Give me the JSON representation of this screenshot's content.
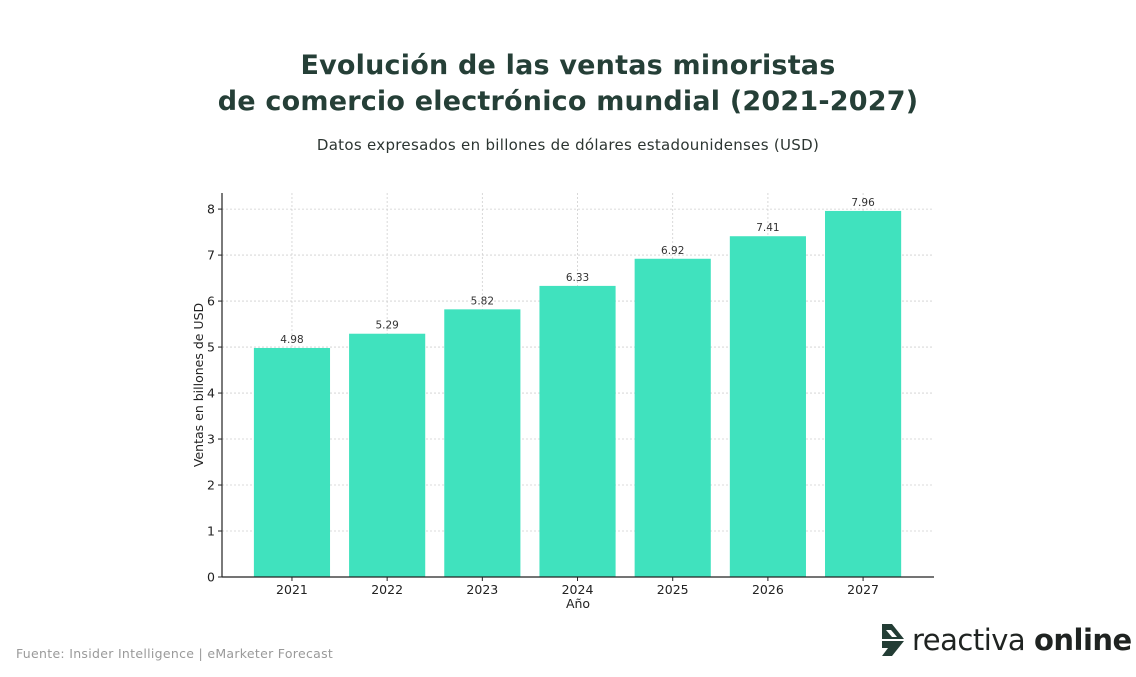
{
  "chart_data": {
    "type": "bar",
    "title": [
      "Evolución de las ventas minoristas",
      "de comercio electrónico mundial (2021-2027)"
    ],
    "subtitle": "Datos expresados en billones de dólares estadounidenses (USD)",
    "categories": [
      "2021",
      "2022",
      "2023",
      "2024",
      "2025",
      "2026",
      "2027"
    ],
    "values": [
      4.98,
      5.29,
      5.82,
      6.33,
      6.92,
      7.41,
      7.96
    ],
    "data_labels": [
      "4.98",
      "5.29",
      "5.82",
      "6.33",
      "6.92",
      "7.41",
      "7.96"
    ],
    "xlabel": "Año",
    "ylabel": "Ventas en billones de USD",
    "ylim": [
      0,
      8.35
    ],
    "yticks": [
      0,
      1,
      2,
      3,
      4,
      5,
      6,
      7,
      8
    ],
    "grid": true,
    "bar_color": "#40e2be",
    "legend": "none"
  },
  "footer": {
    "source": "Fuente: Insider Intelligence | eMarketer Forecast"
  },
  "brand": {
    "logo_icon": "reactiva-arrow-icon",
    "name_light": "reactiva",
    "name_bold": "online",
    "color": "#233d35"
  }
}
